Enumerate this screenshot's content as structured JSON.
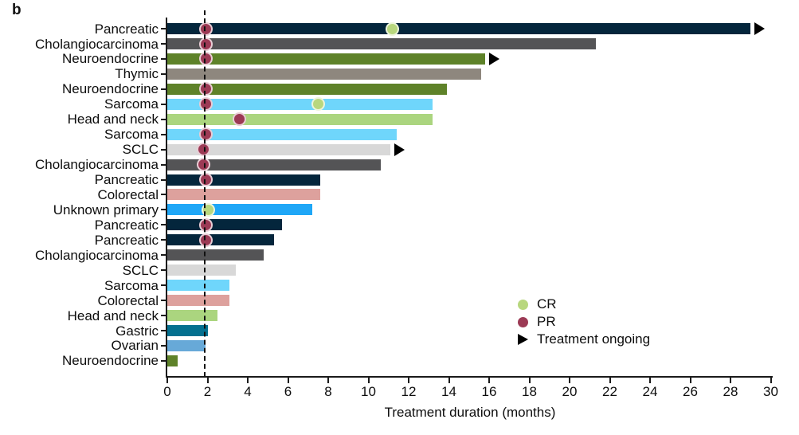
{
  "figure_label": "b",
  "chart_data": {
    "type": "bar",
    "orientation": "horizontal",
    "title": "",
    "xlabel": "Treatment duration (months)",
    "ylabel": "",
    "xlim": [
      0,
      30
    ],
    "xticks": [
      0,
      2,
      4,
      6,
      8,
      10,
      12,
      14,
      16,
      18,
      20,
      22,
      24,
      26,
      28,
      30
    ],
    "reference_line_x": 1.85,
    "axis_color": "#1a1a1a",
    "palette": {
      "navy": "#04263c",
      "dark_gray": "#545456",
      "olive": "#5e8229",
      "taupe": "#8e877e",
      "sky_blue": "#6fd6fb",
      "light_green": "#abd57f",
      "light_gray": "#d8d8d8",
      "salmon": "#dda19d",
      "azure": "#1fa7f7",
      "teal": "#04708f",
      "medium_blue": "#67a9d8"
    },
    "marker_colors": {
      "CR": "#b8d77e",
      "PR": "#9c3a55",
      "ongoing": "#000000"
    },
    "marker_edge_colors": {
      "CR": "#edf5dc",
      "PR": "#e8cdd5"
    },
    "legend": [
      {
        "label": "CR",
        "marker": "circle",
        "color_key": "CR"
      },
      {
        "label": "PR",
        "marker": "circle",
        "color_key": "PR"
      },
      {
        "label": "Treatment ongoing",
        "marker": "triangle",
        "color_key": "ongoing"
      }
    ],
    "bars": [
      {
        "label": "Pancreatic",
        "value": 29.0,
        "color": "navy",
        "ongoing": true,
        "markers": [
          {
            "type": "PR",
            "x": 1.9
          },
          {
            "type": "CR",
            "x": 11.2
          }
        ]
      },
      {
        "label": "Cholangiocarcinoma",
        "value": 21.3,
        "color": "dark_gray",
        "ongoing": false,
        "markers": [
          {
            "type": "PR",
            "x": 1.9
          }
        ]
      },
      {
        "label": "Neuroendocrine",
        "value": 15.8,
        "color": "olive",
        "ongoing": true,
        "markers": [
          {
            "type": "PR",
            "x": 1.9
          }
        ]
      },
      {
        "label": "Thymic",
        "value": 15.6,
        "color": "taupe",
        "ongoing": false,
        "markers": []
      },
      {
        "label": "Neuroendocrine",
        "value": 13.9,
        "color": "olive",
        "ongoing": false,
        "markers": [
          {
            "type": "PR",
            "x": 1.9
          }
        ]
      },
      {
        "label": "Sarcoma",
        "value": 13.2,
        "color": "sky_blue",
        "ongoing": false,
        "markers": [
          {
            "type": "PR",
            "x": 1.9
          },
          {
            "type": "CR",
            "x": 7.5
          }
        ]
      },
      {
        "label": "Head and neck",
        "value": 13.2,
        "color": "light_green",
        "ongoing": false,
        "markers": [
          {
            "type": "PR",
            "x": 3.6
          }
        ]
      },
      {
        "label": "Sarcoma",
        "value": 11.4,
        "color": "sky_blue",
        "ongoing": false,
        "markers": [
          {
            "type": "PR",
            "x": 1.9
          }
        ]
      },
      {
        "label": "SCLC",
        "value": 11.1,
        "color": "light_gray",
        "ongoing": true,
        "markers": [
          {
            "type": "PR",
            "x": 1.8
          }
        ]
      },
      {
        "label": "Cholangiocarcinoma",
        "value": 10.6,
        "color": "dark_gray",
        "ongoing": false,
        "markers": [
          {
            "type": "PR",
            "x": 1.8
          }
        ]
      },
      {
        "label": "Pancreatic",
        "value": 7.6,
        "color": "navy",
        "ongoing": false,
        "markers": [
          {
            "type": "PR",
            "x": 1.9
          }
        ]
      },
      {
        "label": "Colorectal",
        "value": 7.6,
        "color": "salmon",
        "ongoing": false,
        "markers": []
      },
      {
        "label": "Unknown primary",
        "value": 7.2,
        "color": "azure",
        "ongoing": false,
        "markers": [
          {
            "type": "CR",
            "x": 2.05
          }
        ]
      },
      {
        "label": "Pancreatic",
        "value": 5.7,
        "color": "navy",
        "ongoing": false,
        "markers": [
          {
            "type": "PR",
            "x": 1.9
          }
        ]
      },
      {
        "label": "Pancreatic",
        "value": 5.3,
        "color": "navy",
        "ongoing": false,
        "markers": [
          {
            "type": "PR",
            "x": 1.9
          }
        ]
      },
      {
        "label": "Cholangiocarcinoma",
        "value": 4.8,
        "color": "dark_gray",
        "ongoing": false,
        "markers": []
      },
      {
        "label": "SCLC",
        "value": 3.4,
        "color": "light_gray",
        "ongoing": false,
        "markers": []
      },
      {
        "label": "Sarcoma",
        "value": 3.1,
        "color": "sky_blue",
        "ongoing": false,
        "markers": []
      },
      {
        "label": "Colorectal",
        "value": 3.1,
        "color": "salmon",
        "ongoing": false,
        "markers": []
      },
      {
        "label": "Head and neck",
        "value": 2.5,
        "color": "light_green",
        "ongoing": false,
        "markers": []
      },
      {
        "label": "Gastric",
        "value": 2.0,
        "color": "teal",
        "ongoing": false,
        "markers": []
      },
      {
        "label": "Ovarian",
        "value": 1.9,
        "color": "medium_blue",
        "ongoing": false,
        "markers": []
      },
      {
        "label": "Neuroendocrine",
        "value": 0.5,
        "color": "olive",
        "ongoing": false,
        "markers": []
      }
    ]
  }
}
